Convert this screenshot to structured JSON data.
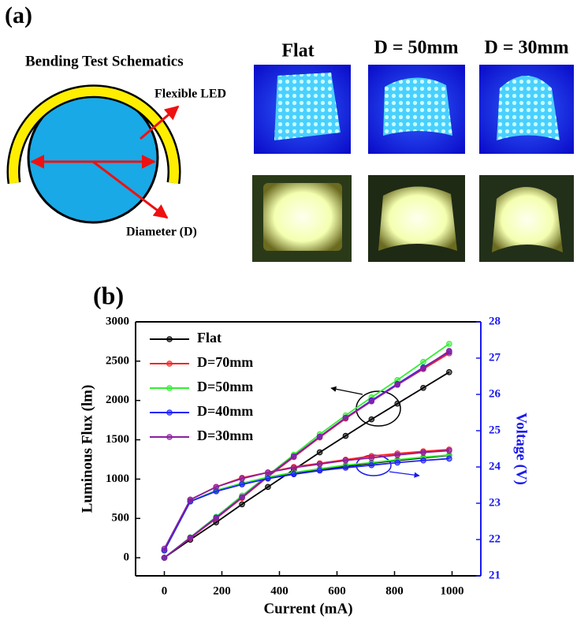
{
  "panel_a": {
    "label": "(a)",
    "schematic_title": "Bending Test Schematics",
    "flexible_led_label": "Flexible LED",
    "diameter_label": "Diameter (D)",
    "photo_columns": [
      "Flat",
      "D = 50mm",
      "D = 30mm"
    ]
  },
  "chart_data": {
    "type": "line",
    "panel_label": "(b)",
    "x_label": "Current (mA)",
    "y_label": "Luminous Flux (lm)",
    "y2_label": "Voltage (V)",
    "x": [
      0,
      90,
      180,
      270,
      360,
      450,
      540,
      630,
      720,
      810,
      900,
      990
    ],
    "xlim": [
      -100,
      1100
    ],
    "xticks": [
      0,
      200,
      400,
      600,
      800,
      1000
    ],
    "ylim": [
      -230,
      3000
    ],
    "yticks": [
      0,
      500,
      1000,
      1500,
      2000,
      2500,
      3000
    ],
    "y2lim": [
      21,
      28
    ],
    "y2ticks": [
      21,
      22,
      23,
      24,
      25,
      26,
      27,
      28
    ],
    "y2_color": "#1a1aee",
    "legend": "upper left",
    "series": [
      {
        "name": "Flat",
        "color": "#000000",
        "values": [
          0,
          230,
          450,
          680,
          900,
          1120,
          1340,
          1550,
          1760,
          1960,
          2160,
          2360
        ]
      },
      {
        "name": "D=70mm",
        "color": "#ff2020",
        "values": [
          0,
          250,
          500,
          760,
          1030,
          1280,
          1530,
          1770,
          1990,
          2200,
          2400,
          2600
        ]
      },
      {
        "name": "D=50mm",
        "color": "#33ee33",
        "values": [
          0,
          260,
          520,
          790,
          1050,
          1310,
          1570,
          1810,
          2040,
          2260,
          2490,
          2720
        ]
      },
      {
        "name": "D=40mm",
        "color": "#2020ff",
        "values": [
          0,
          255,
          510,
          770,
          1040,
          1290,
          1540,
          1780,
          2000,
          2210,
          2420,
          2620
        ]
      },
      {
        "name": "D=30mm",
        "color": "#8a1fa0",
        "values": [
          0,
          255,
          505,
          770,
          1040,
          1290,
          1540,
          1780,
          1990,
          2200,
          2410,
          2630
        ]
      },
      {
        "name": "Flat",
        "color": "#000000",
        "axis": "y2",
        "values": [
          21.7,
          23.05,
          23.35,
          23.55,
          23.7,
          23.82,
          23.93,
          24.02,
          24.1,
          24.18,
          24.25,
          24.32
        ]
      },
      {
        "name": "D=70mm",
        "color": "#ff2020",
        "axis": "y2",
        "values": [
          21.7,
          23.1,
          23.45,
          23.7,
          23.85,
          24.0,
          24.1,
          24.2,
          24.3,
          24.37,
          24.43,
          24.48
        ]
      },
      {
        "name": "D=50mm",
        "color": "#33ee33",
        "axis": "y2",
        "values": [
          21.7,
          23.05,
          23.35,
          23.55,
          23.72,
          23.85,
          23.95,
          24.05,
          24.12,
          24.2,
          24.27,
          24.33
        ]
      },
      {
        "name": "D=40mm",
        "color": "#2020ff",
        "axis": "y2",
        "values": [
          21.7,
          23.05,
          23.33,
          23.52,
          23.68,
          23.8,
          23.9,
          23.98,
          24.05,
          24.12,
          24.18,
          24.23
        ]
      },
      {
        "name": "D=30mm",
        "color": "#8a1fa0",
        "axis": "y2",
        "values": [
          21.75,
          23.1,
          23.45,
          23.68,
          23.85,
          23.98,
          24.08,
          24.18,
          24.25,
          24.33,
          24.4,
          24.45
        ]
      }
    ]
  }
}
